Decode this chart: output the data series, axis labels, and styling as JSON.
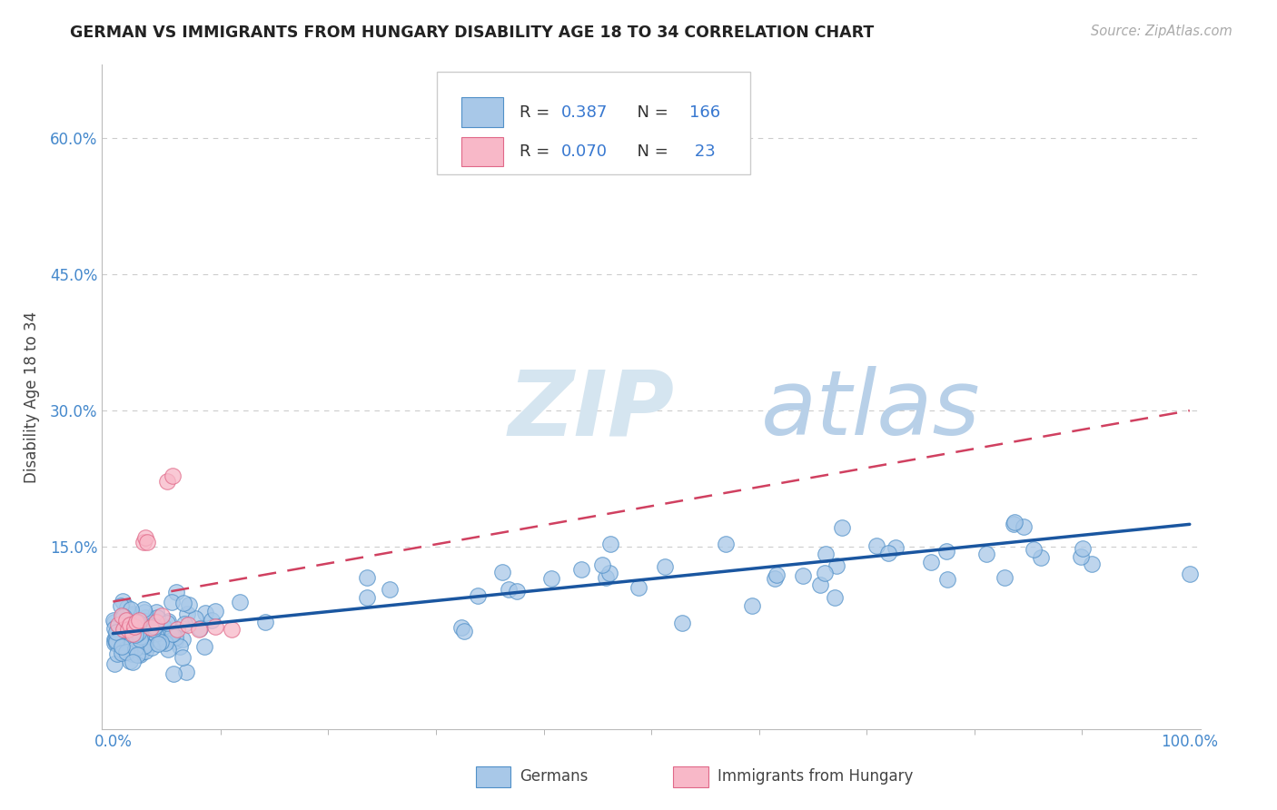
{
  "title": "GERMAN VS IMMIGRANTS FROM HUNGARY DISABILITY AGE 18 TO 34 CORRELATION CHART",
  "source": "Source: ZipAtlas.com",
  "ylabel": "Disability Age 18 to 34",
  "watermark_zip": "ZIP",
  "watermark_atlas": "atlas",
  "xlim": [
    -0.01,
    1.01
  ],
  "ylim": [
    -0.05,
    0.68
  ],
  "blue_color": "#a8c8e8",
  "blue_edge_color": "#5090c8",
  "pink_color": "#f8b8c8",
  "pink_edge_color": "#e06888",
  "blue_line_color": "#1a56a0",
  "pink_line_color": "#d04060",
  "text_color_blue": "#3878d0",
  "text_color_black": "#333333",
  "background_color": "#ffffff",
  "grid_color": "#cccccc",
  "axis_color": "#bbbbbb",
  "watermark_color": "#dde8f0",
  "watermark_atlas_color": "#b8cce0",
  "legend_r1_black": "R = ",
  "legend_r1_blue": "0.387",
  "legend_n1_black": "  N = ",
  "legend_n1_blue": "166",
  "legend_r2_black": "R = ",
  "legend_r2_blue": "0.070",
  "legend_n2_black": "  N = ",
  "legend_n2_blue": " 23",
  "blue_trend": [
    0.0,
    1.0,
    0.055,
    0.175
  ],
  "pink_trend": [
    0.0,
    1.0,
    0.09,
    0.3
  ],
  "ytick_vals": [
    0.15,
    0.3,
    0.45,
    0.6
  ],
  "ytick_labels": [
    "15.0%",
    "30.0%",
    "45.0%",
    "60.0%"
  ],
  "xtick_vals": [
    0.0,
    1.0
  ],
  "xtick_labels": [
    "0.0%",
    "100.0%"
  ]
}
